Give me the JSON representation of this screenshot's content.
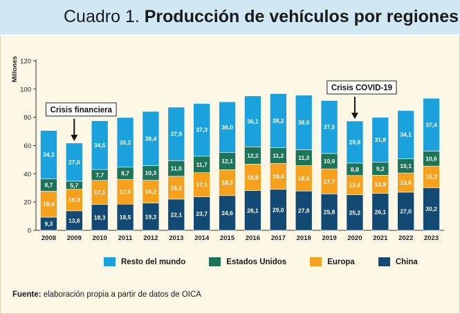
{
  "header": {
    "title_prefix": "Cuadro 1.",
    "title_main": "Producción de vehículos por regiones"
  },
  "colors": {
    "china": "#124a73",
    "europa": "#f6a11e",
    "eeuu": "#1c7558",
    "resto": "#1ba1dc",
    "header_bg": "#cfe8f4",
    "panel_bg": "#fdf8e6"
  },
  "chart_data": {
    "type": "bar",
    "stacked": true,
    "ylabel": "Millones",
    "ylim": [
      0,
      120
    ],
    "yticks": [
      0,
      20,
      40,
      60,
      80,
      100,
      120
    ],
    "categories": [
      "2008",
      "2009",
      "2010",
      "2011",
      "2012",
      "2013",
      "2014",
      "2015",
      "2016",
      "2017",
      "2018",
      "2019",
      "2020",
      "2021",
      "2022",
      "2023"
    ],
    "series": [
      {
        "name": "China",
        "color_key": "china",
        "values": [
          9.3,
          13.8,
          18.3,
          18.5,
          19.3,
          22.1,
          23.7,
          24.6,
          28.1,
          29.0,
          27.8,
          25.8,
          25.2,
          26.1,
          27.0,
          30.2
        ],
        "labels": [
          "9,3",
          "13,8",
          "18,3",
          "18,5",
          "19,3",
          "22,1",
          "23,7",
          "24,6",
          "28,1",
          "29,0",
          "27,8",
          "25,8",
          "25,2",
          "26,1",
          "27,0",
          "30,2"
        ]
      },
      {
        "name": "Europa",
        "color_key": "europa",
        "values": [
          18.4,
          15.3,
          17.1,
          17.5,
          16.2,
          16.2,
          17.1,
          18.3,
          18.8,
          18.4,
          18.0,
          17.7,
          13.6,
          12.9,
          13.6,
          15.3
        ],
        "labels": [
          "18,4",
          "15,3",
          "17,1",
          "17,5",
          "16,2",
          "16,2",
          "17,1",
          "18,3",
          "18,8",
          "18,4",
          "18,0",
          "17,7",
          "13,6",
          "12,9",
          "13,6",
          "15,3"
        ]
      },
      {
        "name": "Estados Unidos",
        "color_key": "eeuu",
        "values": [
          8.7,
          5.7,
          7.7,
          8.7,
          10.3,
          11.0,
          11.7,
          12.1,
          12.2,
          11.2,
          11.3,
          10.9,
          8.8,
          9.2,
          10.1,
          10.6
        ],
        "labels": [
          "8,7",
          "5,7",
          "7,7",
          "8,7",
          "10,3",
          "11,0",
          "11,7",
          "12,1",
          "12,2",
          "11,2",
          "11,3",
          "10,9",
          "8,8",
          "9,2",
          "10,1",
          "10,6"
        ]
      },
      {
        "name": "Resto del mundo",
        "color_key": "resto",
        "values": [
          34.3,
          27.0,
          34.5,
          35.2,
          38.4,
          37.9,
          37.3,
          36.0,
          36.1,
          38.2,
          38.6,
          37.5,
          29.8,
          31.8,
          34.1,
          37.4
        ],
        "labels": [
          "34,3",
          "27,0",
          "34,5",
          "35,2",
          "38,4",
          "37,9",
          "37,3",
          "36,0",
          "36,1",
          "38,2",
          "38,6",
          "37,5",
          "29,8",
          "31,8",
          "34,1",
          "37,4"
        ]
      }
    ],
    "annotations": [
      {
        "text": "Crisis financiera",
        "category": "2009"
      },
      {
        "text": "Crisis COVID-19",
        "category": "2020"
      }
    ]
  },
  "legend": [
    {
      "label": "Resto del mundo",
      "color_key": "resto"
    },
    {
      "label": "Estados Unidos",
      "color_key": "eeuu"
    },
    {
      "label": "Europa",
      "color_key": "europa"
    },
    {
      "label": "China",
      "color_key": "china"
    }
  ],
  "source": {
    "label": "Fuente:",
    "text": "elaboración propia a partir de datos de OICA"
  }
}
